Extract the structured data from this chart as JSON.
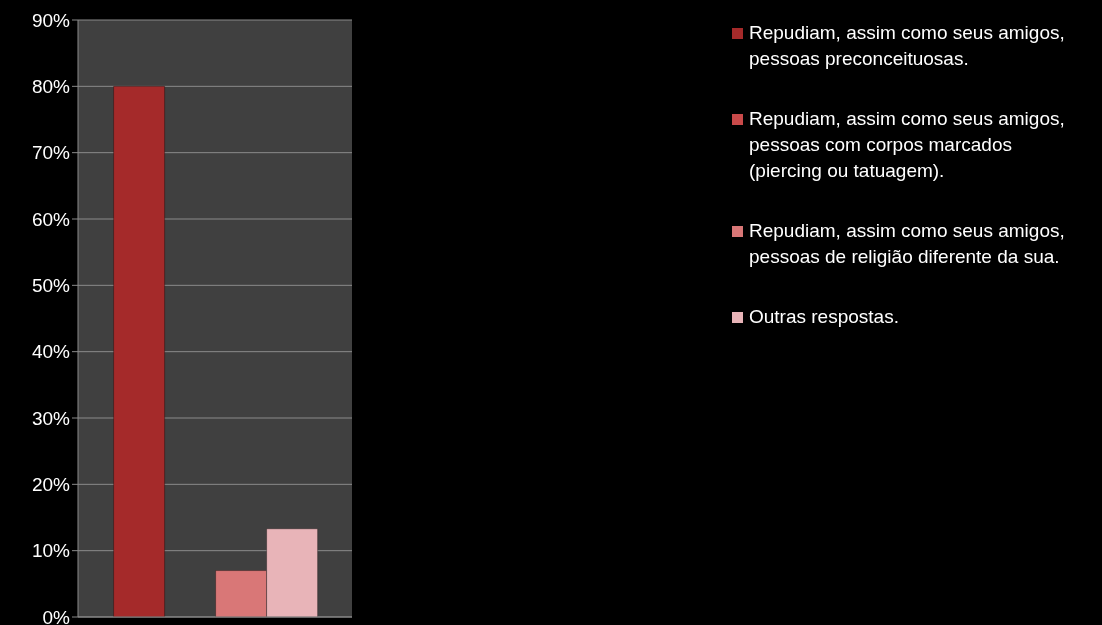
{
  "chart_data": {
    "type": "bar",
    "categories": [
      null
    ],
    "series": [
      {
        "name": "Repudiam, assim como seus amigos, pessoas preconceituosas.",
        "color": "#a52a2a",
        "values": [
          80
        ]
      },
      {
        "name": "Repudiam, assim como seus amigos, pessoas com corpos marcados (piercing ou tatuagem).",
        "color": "#c94a4a",
        "values": [
          0
        ]
      },
      {
        "name": "Repudiam, assim como seus amigos, pessoas de religião diferente da sua.",
        "color": "#d97777",
        "values": [
          7
        ]
      },
      {
        "name": "Outras respostas.",
        "color": "#e8b4b8",
        "values": [
          13.3
        ]
      }
    ],
    "ylim": [
      0,
      90
    ],
    "yticks": [
      {
        "value": 0,
        "label": "0%"
      },
      {
        "value": 10,
        "label": "10%"
      },
      {
        "value": 20,
        "label": "20%"
      },
      {
        "value": 30,
        "label": "30%"
      },
      {
        "value": 40,
        "label": "40%"
      },
      {
        "value": 50,
        "label": "50%"
      },
      {
        "value": 60,
        "label": "60%"
      },
      {
        "value": 70,
        "label": "70%"
      },
      {
        "value": 80,
        "label": "80%"
      },
      {
        "value": 90,
        "label": "90%"
      }
    ],
    "grid": "y",
    "legend": "right"
  }
}
